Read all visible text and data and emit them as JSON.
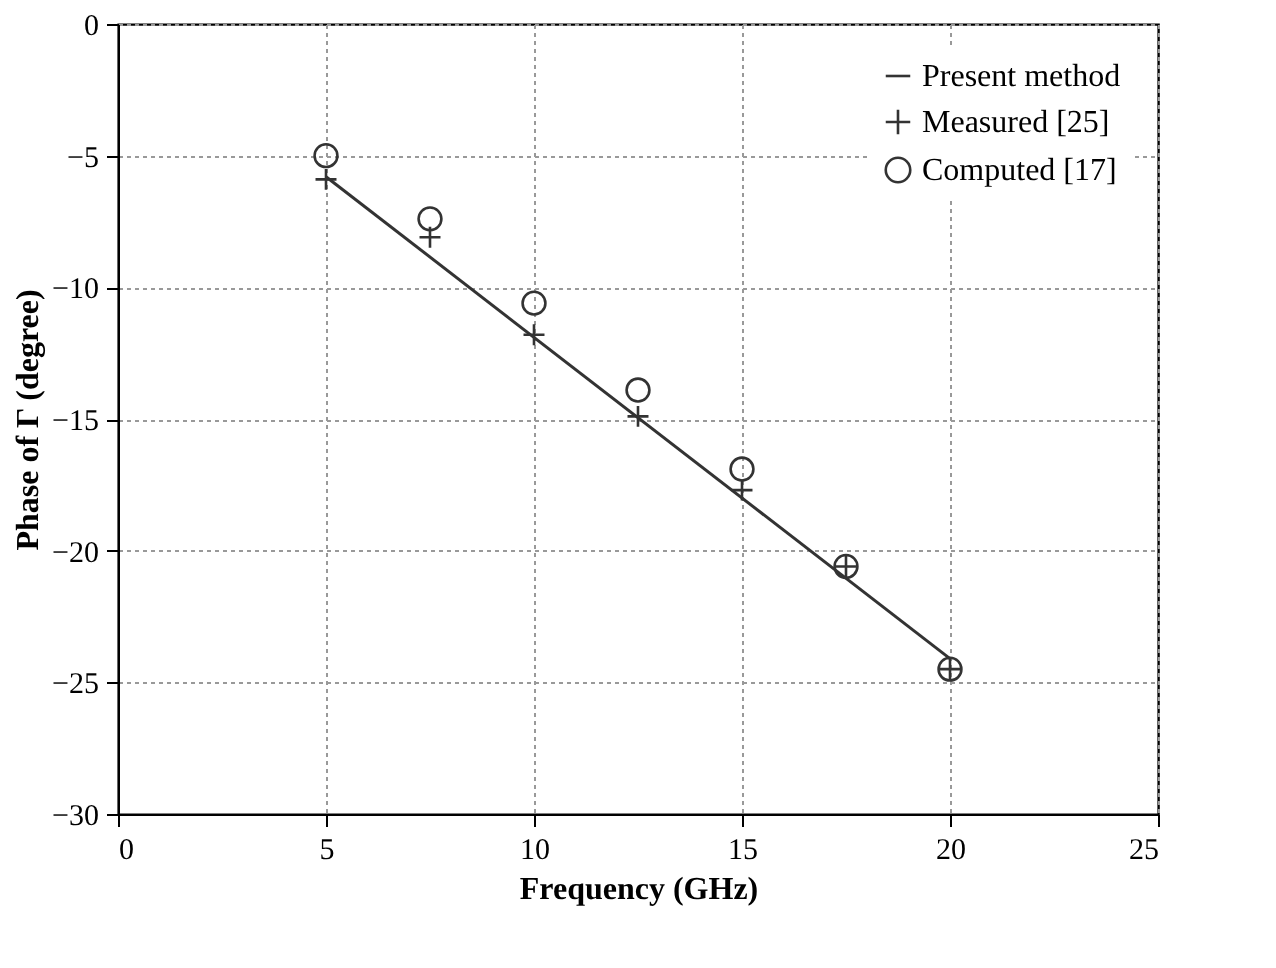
{
  "chart_data": {
    "type": "line",
    "xlabel": "Frequency  (GHz)",
    "ylabel": "Phase of  Γ  (degree)",
    "xlim": [
      0,
      25
    ],
    "xticks": [
      0,
      5,
      10,
      15,
      20,
      25
    ],
    "ylim": [
      -30,
      0
    ],
    "yticks": [
      -30,
      -25,
      -20,
      -15,
      -10,
      -5,
      0
    ],
    "grid": true,
    "legend": "top right",
    "series": [
      {
        "name": "Present method",
        "marker": "none",
        "line_style": "solid",
        "color": "#333333",
        "x": [
          5,
          20
        ],
        "values": [
          -5.8,
          -24.1
        ]
      },
      {
        "name": "Measured [25]",
        "type": "scatter",
        "marker": "cross",
        "color": "#333333",
        "x": [
          5,
          7.5,
          10,
          12.5,
          15,
          17.5,
          20
        ],
        "values": [
          -5.9,
          -8.1,
          -11.8,
          -14.9,
          -17.7,
          -20.6,
          -24.5
        ]
      },
      {
        "name": "Computed [17]",
        "type": "scatter",
        "marker": "circle",
        "color": "#333333",
        "x": [
          5,
          7.5,
          10,
          12.5,
          15,
          17.5,
          20
        ],
        "values": [
          -5.0,
          -7.4,
          -10.6,
          -13.9,
          -16.9,
          -20.6,
          -24.5
        ]
      }
    ]
  }
}
